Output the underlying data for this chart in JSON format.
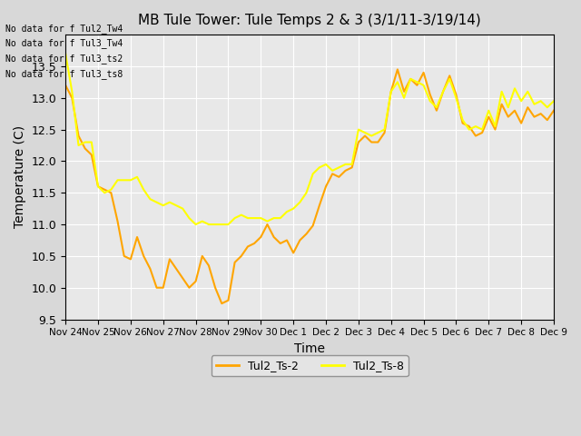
{
  "title": "MB Tule Tower: Tule Temps 2 & 3 (3/1/11-3/19/14)",
  "xlabel": "Time",
  "ylabel": "Temperature (C)",
  "ylim": [
    9.5,
    14.0
  ],
  "yticks": [
    9.5,
    10.0,
    10.5,
    11.0,
    11.5,
    12.0,
    12.5,
    13.0,
    13.5
  ],
  "background_color": "#e8e8e8",
  "plot_bg_color": "#e8e8e8",
  "line1_color": "#FFA500",
  "line2_color": "#FFFF00",
  "line1_label": "Tul2_Ts-2",
  "line2_label": "Tul2_Ts-8",
  "legend_text_lines": [
    "No data for f Tul2_Tw4",
    "No data for f Tul3_Tw4",
    "No data for f Tul3_ts2",
    "No data for f Tul3_ts8"
  ],
  "x_tick_labels": [
    "Nov 24",
    "Nov 25",
    "Nov 26",
    "Nov 27",
    "Nov 28",
    "Nov 29",
    "Nov 30",
    "Dec 1",
    "Dec 2",
    "Dec 3",
    "Dec 4",
    "Dec 5",
    "Dec 6",
    "Dec 7",
    "Dec 8",
    "Dec 9"
  ],
  "ts2_x": [
    0,
    0.2,
    0.4,
    0.6,
    0.8,
    1.0,
    1.2,
    1.4,
    1.6,
    1.8,
    2.0,
    2.2,
    2.4,
    2.6,
    2.8,
    3.0,
    3.2,
    3.4,
    3.6,
    3.8,
    4.0,
    4.2,
    4.4,
    4.6,
    4.8,
    5.0,
    5.2,
    5.4,
    5.6,
    5.8,
    6.0,
    6.2,
    6.4,
    6.6,
    6.8,
    7.0,
    7.2,
    7.4,
    7.6,
    7.8,
    8.0,
    8.2,
    8.4,
    8.6,
    8.8,
    9.0,
    9.2,
    9.4,
    9.6,
    9.8,
    10.0,
    10.2,
    10.4,
    10.6,
    10.8,
    11.0,
    11.2,
    11.4,
    11.6,
    11.8,
    12.0,
    12.2,
    12.4,
    12.6,
    12.8,
    13.0,
    13.2,
    13.4,
    13.6,
    13.8,
    14.0,
    14.2,
    14.4,
    14.6,
    14.8,
    15.0
  ],
  "ts2_y": [
    13.2,
    13.0,
    12.4,
    12.2,
    12.1,
    11.6,
    11.55,
    11.5,
    11.05,
    10.5,
    10.45,
    10.8,
    10.5,
    10.3,
    10.0,
    10.0,
    10.45,
    10.3,
    10.15,
    10.0,
    10.1,
    10.5,
    10.35,
    10.0,
    9.75,
    9.8,
    10.4,
    10.5,
    10.65,
    10.7,
    10.8,
    11.0,
    10.8,
    10.7,
    10.75,
    10.55,
    10.75,
    10.85,
    10.98,
    11.3,
    11.6,
    11.8,
    11.75,
    11.85,
    11.9,
    12.3,
    12.4,
    12.3,
    12.3,
    12.45,
    13.1,
    13.45,
    13.1,
    13.3,
    13.2,
    13.4,
    13.05,
    12.8,
    13.1,
    13.35,
    13.05,
    12.6,
    12.55,
    12.4,
    12.45,
    12.7,
    12.5,
    12.9,
    12.7,
    12.8,
    12.6,
    12.85,
    12.7,
    12.75,
    12.65,
    12.8
  ],
  "ts8_x": [
    0,
    0.2,
    0.4,
    0.6,
    0.8,
    1.0,
    1.2,
    1.4,
    1.6,
    1.8,
    2.0,
    2.2,
    2.4,
    2.6,
    2.8,
    3.0,
    3.2,
    3.4,
    3.6,
    3.8,
    4.0,
    4.2,
    4.4,
    4.6,
    4.8,
    5.0,
    5.2,
    5.4,
    5.6,
    5.8,
    6.0,
    6.2,
    6.4,
    6.6,
    6.8,
    7.0,
    7.2,
    7.4,
    7.6,
    7.8,
    8.0,
    8.2,
    8.4,
    8.6,
    8.8,
    9.0,
    9.2,
    9.4,
    9.6,
    9.8,
    10.0,
    10.2,
    10.4,
    10.6,
    10.8,
    11.0,
    11.2,
    11.4,
    11.6,
    11.8,
    12.0,
    12.2,
    12.4,
    12.6,
    12.8,
    13.0,
    13.2,
    13.4,
    13.6,
    13.8,
    14.0,
    14.2,
    14.4,
    14.6,
    14.8,
    15.0
  ],
  "ts8_y": [
    13.7,
    13.1,
    12.25,
    12.3,
    12.3,
    11.6,
    11.5,
    11.55,
    11.7,
    11.7,
    11.7,
    11.75,
    11.55,
    11.4,
    11.35,
    11.3,
    11.35,
    11.3,
    11.25,
    11.1,
    11.0,
    11.05,
    11.0,
    11.0,
    11.0,
    11.0,
    11.1,
    11.15,
    11.1,
    11.1,
    11.1,
    11.05,
    11.1,
    11.1,
    11.2,
    11.25,
    11.35,
    11.5,
    11.8,
    11.9,
    11.95,
    11.85,
    11.9,
    11.95,
    11.95,
    12.5,
    12.45,
    12.4,
    12.45,
    12.5,
    13.1,
    13.25,
    13.0,
    13.3,
    13.25,
    13.2,
    12.95,
    12.85,
    13.1,
    13.3,
    13.0,
    12.65,
    12.5,
    12.55,
    12.5,
    12.8,
    12.55,
    13.1,
    12.85,
    13.15,
    12.95,
    13.1,
    12.9,
    12.95,
    12.85,
    12.95
  ]
}
